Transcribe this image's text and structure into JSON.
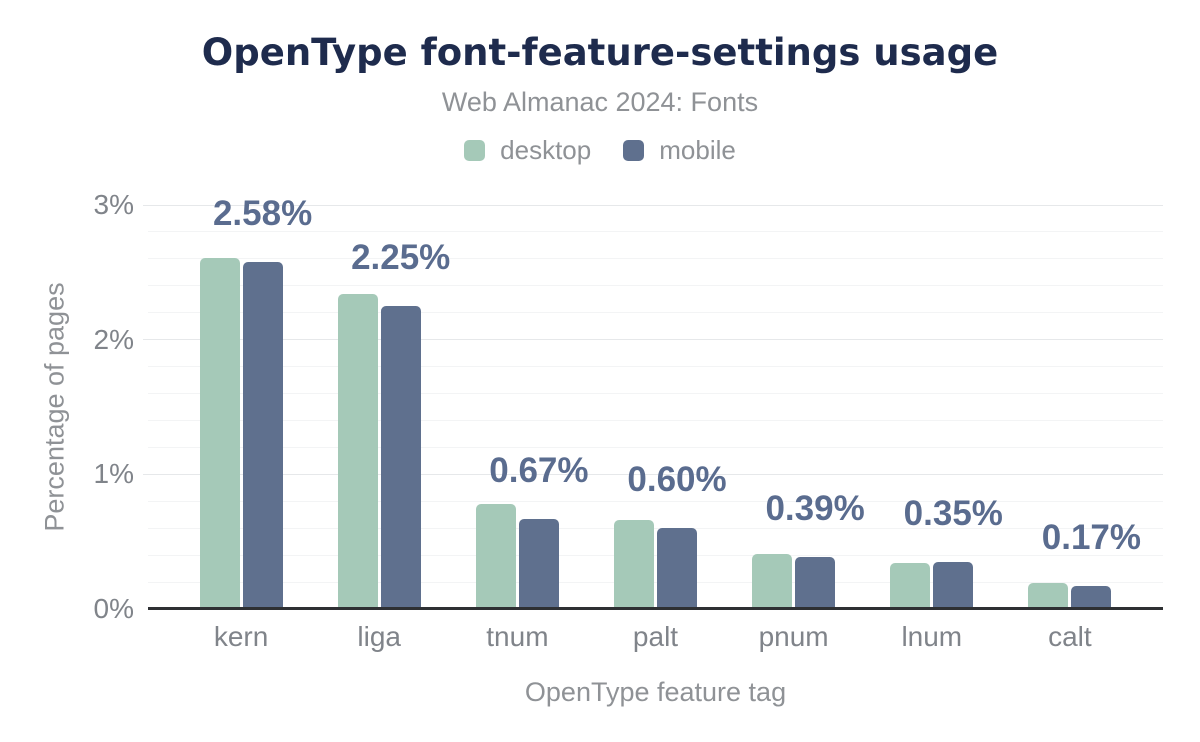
{
  "colors": {
    "desktop": "#a5c9b8",
    "mobile": "#5f708e",
    "title": "#1e2b4d",
    "gray_text": "#8f9296",
    "tick_text": "#80848a",
    "data_label": "#5a6c8f",
    "grid_minor": "#f3f4f5",
    "grid_major": "#e6e8ea",
    "axis_line": "#2e3033"
  },
  "chart_data": {
    "type": "bar",
    "title": "OpenType font-feature-settings usage",
    "subtitle": "Web Almanac 2024: Fonts",
    "xlabel": "OpenType feature tag",
    "ylabel": "Percentage of pages",
    "categories": [
      "kern",
      "liga",
      "tnum",
      "palt",
      "pnum",
      "lnum",
      "calt"
    ],
    "series": [
      {
        "name": "desktop",
        "values": [
          2.61,
          2.34,
          0.78,
          0.66,
          0.41,
          0.34,
          0.19
        ]
      },
      {
        "name": "mobile",
        "values": [
          2.58,
          2.25,
          0.67,
          0.6,
          0.39,
          0.35,
          0.17
        ]
      }
    ],
    "data_labels": [
      "2.58%",
      "2.25%",
      "0.67%",
      "0.60%",
      "0.39%",
      "0.35%",
      "0.17%"
    ],
    "ylim": [
      0,
      3
    ],
    "yticks": [
      "0%",
      "1%",
      "2%",
      "3%"
    ],
    "minor_grid_step": 0.2,
    "grid": "on",
    "legend_position": "top"
  }
}
